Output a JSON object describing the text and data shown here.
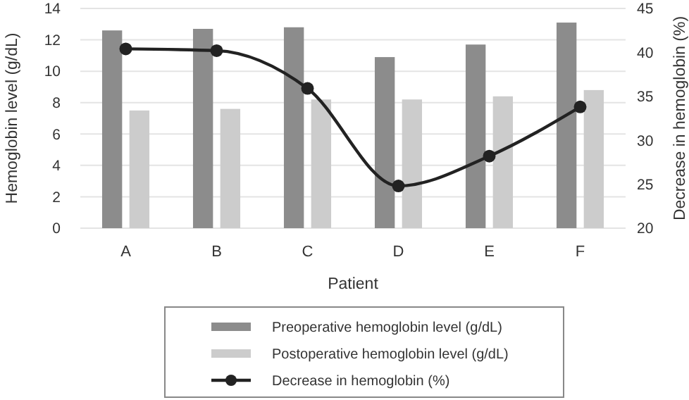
{
  "chart_data": {
    "type": "bar",
    "xlabel": "Patient",
    "ylabel": "Hemoglobin level (g/dL)",
    "y2label": "Decrease in hemoglobin (%)",
    "categories": [
      "A",
      "B",
      "C",
      "D",
      "E",
      "F"
    ],
    "series": [
      {
        "name": "Preoperative hemoglobin level (g/dL)",
        "color": "#8c8c8c",
        "values": [
          12.6,
          12.7,
          12.8,
          10.9,
          11.7,
          13.1
        ]
      },
      {
        "name": "Postoperative hemoglobin level (g/dL)",
        "color": "#cccccc",
        "values": [
          7.5,
          7.6,
          8.2,
          8.2,
          8.4,
          8.8
        ]
      },
      {
        "name": "Decrease in hemoglobin (%)",
        "type": "line",
        "axis": "y2",
        "color": "#222222",
        "marker": "circle",
        "values": [
          40.4,
          40.2,
          35.9,
          24.8,
          28.2,
          33.8
        ]
      }
    ],
    "ylim": [
      0,
      14
    ],
    "yticks": [
      0,
      2,
      4,
      6,
      8,
      10,
      12,
      14
    ],
    "y2lim": [
      20,
      45
    ],
    "y2ticks": [
      20,
      25,
      30,
      35,
      40,
      45
    ],
    "grid": "y",
    "legend": "bottom"
  }
}
